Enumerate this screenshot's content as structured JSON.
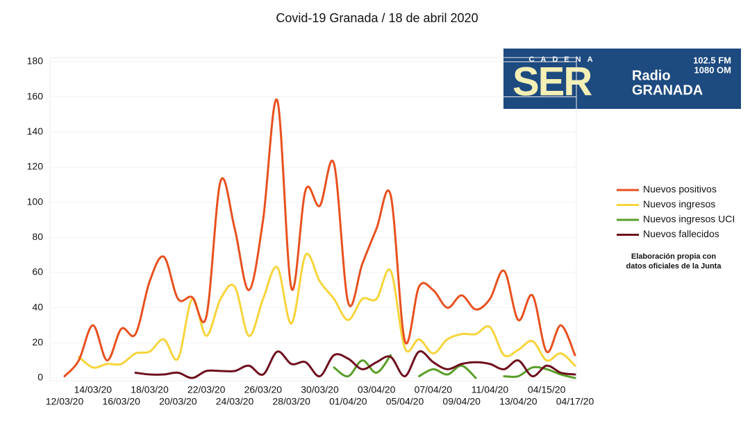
{
  "chart_data": {
    "type": "line",
    "title": "Covid-19 Granada / 18 de abril 2020",
    "categories": [
      "12/03/20",
      null,
      "14/03/20",
      null,
      "16/03/20",
      null,
      "18/03/20",
      null,
      "20/03/20",
      null,
      "22/03/20",
      null,
      "24/03/20",
      null,
      "26/03/20",
      null,
      "28/03/20",
      null,
      "30/03/20",
      null,
      "01/04/20",
      null,
      "03/04/20",
      null,
      "05/04/20",
      null,
      "07/04/20",
      null,
      "09/04/20",
      null,
      "11/04/20",
      null,
      "13/04/20",
      null,
      "04/15/20",
      null,
      "04/17/20"
    ],
    "series": [
      {
        "name": "Nuevos positivos",
        "color": "#e8501e",
        "values": [
          1,
          10,
          30,
          10,
          28,
          25,
          55,
          69,
          45,
          46,
          35,
          112,
          85,
          50,
          90,
          158,
          51,
          107,
          98,
          122,
          43,
          65,
          85,
          104,
          21,
          52,
          50,
          40,
          47,
          39,
          45,
          61,
          33,
          47,
          15,
          30,
          13
        ]
      },
      {
        "name": "Nuevos ingresos",
        "color": "#f7d43a",
        "values": [
          null,
          12,
          6,
          8,
          8,
          14,
          15,
          22,
          11,
          45,
          24,
          45,
          52,
          24,
          45,
          63,
          31,
          70,
          55,
          45,
          33,
          45,
          45,
          61,
          17,
          22,
          14,
          22,
          25,
          25,
          29,
          13,
          16,
          21,
          10,
          14,
          7
        ]
      },
      {
        "name": "Nuevos ingresos UCI",
        "color": "#5a9e2a",
        "values": [
          null,
          null,
          null,
          null,
          null,
          null,
          null,
          null,
          null,
          null,
          null,
          null,
          null,
          null,
          null,
          null,
          null,
          null,
          null,
          6,
          1,
          10,
          3,
          13,
          null,
          1,
          5,
          2,
          7,
          0,
          null,
          1,
          1,
          6,
          5,
          2,
          0
        ]
      },
      {
        "name": "Nuevos fallecidos",
        "color": "#6e0f1e",
        "values": [
          null,
          null,
          null,
          null,
          null,
          3,
          2,
          2,
          3,
          0,
          4,
          4,
          4,
          7,
          2,
          15,
          8,
          9,
          1,
          13,
          11,
          5,
          9,
          12,
          1,
          15,
          9,
          5,
          8,
          9,
          8,
          5,
          10,
          1,
          7,
          3,
          2
        ]
      }
    ],
    "ylim": [
      0,
      180
    ],
    "yticks": [
      0,
      20,
      40,
      60,
      80,
      100,
      120,
      140,
      160,
      180
    ],
    "grid": true,
    "legend": "right",
    "annotation": [
      "Elaboración propia con",
      "datos oficiales de la Junta"
    ],
    "logo": {
      "network": "CADENA",
      "brand": "SER",
      "fm": "102.5 FM",
      "om": "1080 OM",
      "line1": "Radio",
      "line2": "GRANADA"
    }
  }
}
